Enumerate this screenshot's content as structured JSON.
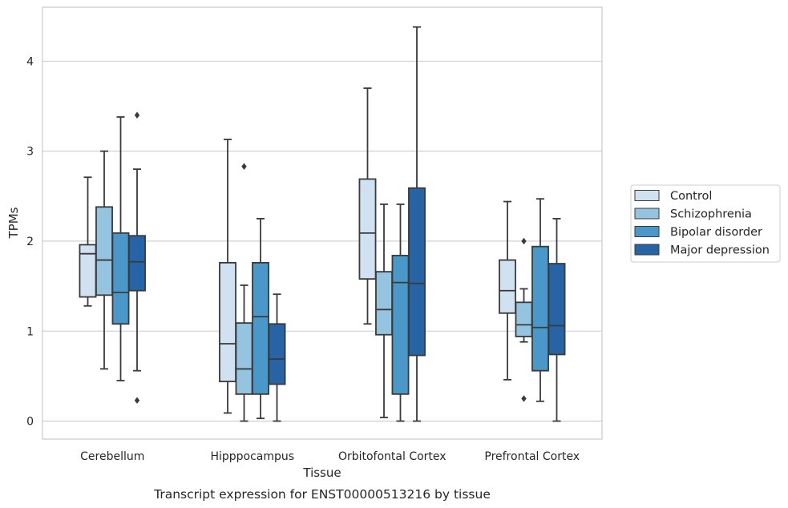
{
  "chart_data": {
    "type": "box",
    "title": "",
    "caption": "Transcript expression for ENST00000513216 by tissue",
    "xlabel": "Tissue",
    "ylabel": "TPMs",
    "ylim": [
      -0.2,
      4.6
    ],
    "yticks": [
      0,
      1,
      2,
      3,
      4
    ],
    "grid": true,
    "legend_position": "right",
    "categories": [
      "Cerebellum",
      "Hipppocampus",
      "Orbitofontal Cortex",
      "Prefrontal Cortex"
    ],
    "series": [
      {
        "name": "Control",
        "color": "#d0e1f2",
        "boxes": [
          {
            "whisker_low": 1.28,
            "q1": 1.38,
            "median": 1.86,
            "q3": 1.96,
            "whisker_high": 2.71,
            "outliers": []
          },
          {
            "whisker_low": 0.09,
            "q1": 0.44,
            "median": 0.86,
            "q3": 1.76,
            "whisker_high": 3.13,
            "outliers": []
          },
          {
            "whisker_low": 1.08,
            "q1": 1.58,
            "median": 2.09,
            "q3": 2.69,
            "whisker_high": 3.7,
            "outliers": []
          },
          {
            "whisker_low": 0.46,
            "q1": 1.2,
            "median": 1.45,
            "q3": 1.79,
            "whisker_high": 2.44,
            "outliers": []
          }
        ]
      },
      {
        "name": "Schizophrenia",
        "color": "#94c4df",
        "boxes": [
          {
            "whisker_low": 0.58,
            "q1": 1.4,
            "median": 1.79,
            "q3": 2.38,
            "whisker_high": 3.0,
            "outliers": []
          },
          {
            "whisker_low": 0.0,
            "q1": 0.3,
            "median": 0.58,
            "q3": 1.09,
            "whisker_high": 1.51,
            "outliers": [
              2.83
            ]
          },
          {
            "whisker_low": 0.04,
            "q1": 0.96,
            "median": 1.24,
            "q3": 1.66,
            "whisker_high": 2.41,
            "outliers": []
          },
          {
            "whisker_low": 0.88,
            "q1": 0.94,
            "median": 1.07,
            "q3": 1.32,
            "whisker_high": 1.47,
            "outliers": [
              2.0,
              0.25
            ]
          }
        ]
      },
      {
        "name": "Bipolar disorder",
        "color": "#4a98c9",
        "boxes": [
          {
            "whisker_low": 0.45,
            "q1": 1.08,
            "median": 1.43,
            "q3": 2.09,
            "whisker_high": 3.38,
            "outliers": []
          },
          {
            "whisker_low": 0.03,
            "q1": 0.3,
            "median": 1.16,
            "q3": 1.76,
            "whisker_high": 2.25,
            "outliers": []
          },
          {
            "whisker_low": 0.0,
            "q1": 0.3,
            "median": 1.54,
            "q3": 1.84,
            "whisker_high": 2.41,
            "outliers": []
          },
          {
            "whisker_low": 0.22,
            "q1": 0.56,
            "median": 1.04,
            "q3": 1.94,
            "whisker_high": 2.47,
            "outliers": []
          }
        ]
      },
      {
        "name": "Major depression",
        "color": "#2664a6",
        "boxes": [
          {
            "whisker_low": 0.56,
            "q1": 1.45,
            "median": 1.77,
            "q3": 2.06,
            "whisker_high": 2.8,
            "outliers": [
              3.4,
              0.23
            ]
          },
          {
            "whisker_low": 0.0,
            "q1": 0.41,
            "median": 0.69,
            "q3": 1.08,
            "whisker_high": 1.41,
            "outliers": []
          },
          {
            "whisker_low": 0.0,
            "q1": 0.73,
            "median": 1.53,
            "q3": 2.59,
            "whisker_high": 4.38,
            "outliers": []
          },
          {
            "whisker_low": 0.0,
            "q1": 0.74,
            "median": 1.06,
            "q3": 1.75,
            "whisker_high": 2.25,
            "outliers": []
          }
        ]
      }
    ]
  }
}
